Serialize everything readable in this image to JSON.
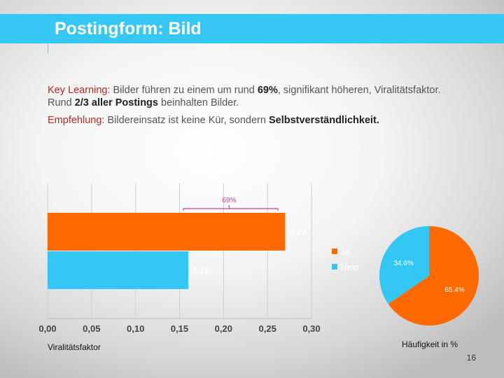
{
  "slide": {
    "title": "Postingform: Bild",
    "page_number": "16",
    "key_learning": {
      "label": "Key Learning:",
      "text_1": " Bilder führen zu einem um rund ",
      "highlight_1": "69%",
      "text_2": ", signifikant höheren, Viralitätsfaktor. Rund ",
      "highlight_2": "2/3 aller Postings",
      "text_3": " beinhalten Bilder."
    },
    "recommendation": {
      "label": "Empfehlung:",
      "text_1": " Bildereinsatz ist keine Kür, sondern ",
      "highlight_1": "Selbstverständlichkeit."
    }
  },
  "colors": {
    "accent": "#35c8f4",
    "ja": "#ff6a00",
    "nein": "#33c7f5",
    "highlight_label": "#c2271e",
    "annotation": "#cc3fa0"
  },
  "chart_data": [
    {
      "type": "bar",
      "orientation": "horizontal",
      "categories": [
        "Ja",
        "Nein"
      ],
      "values": [
        0.27,
        0.16
      ],
      "data_labels": [
        "0,27",
        "0,16"
      ],
      "xlabel": "Viralitätsfaktor",
      "xlim": [
        0,
        0.3
      ],
      "x_ticks": [
        "0,00",
        "0,05",
        "0,10",
        "0,15",
        "0,20",
        "0,25",
        "0,30"
      ],
      "grid": true,
      "annotation": "69%"
    },
    {
      "type": "pie",
      "title": "Häufigkeit in %",
      "legend": [
        "Ja",
        "Nein"
      ],
      "legend_position": "left",
      "values": [
        65.4,
        34.6
      ],
      "labels": [
        "65.4%",
        "34.6%"
      ]
    }
  ]
}
